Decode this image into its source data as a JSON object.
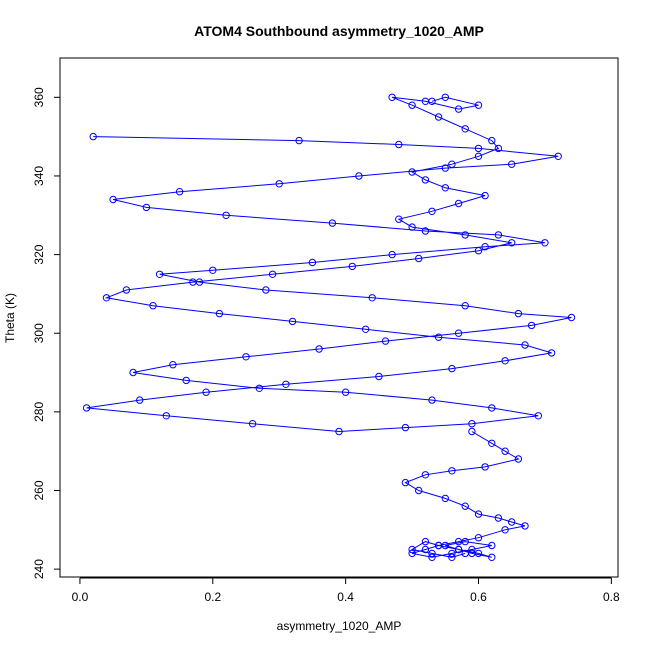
{
  "chart_data": {
    "type": "scatter",
    "title": "ATOM4 Southbound asymmetry_1020_AMP",
    "xlabel": "asymmetry_1020_AMP",
    "ylabel": "Theta (K)",
    "xlim": [
      -0.03,
      0.81
    ],
    "ylim": [
      238,
      370
    ],
    "xticks": [
      0.0,
      0.2,
      0.4,
      0.6,
      0.8
    ],
    "yticks": [
      240,
      260,
      280,
      300,
      320,
      340,
      360
    ],
    "xtick_labels": [
      "0.0",
      "0.2",
      "0.4",
      "0.6",
      "0.8"
    ],
    "ytick_labels": [
      "240",
      "260",
      "280",
      "300",
      "320",
      "340",
      "360"
    ],
    "grid": false,
    "series": [
      {
        "color": "#0000ff",
        "marker": "open-circle",
        "connected": true,
        "x": [
          0.02,
          0.33,
          0.48,
          0.6,
          0.72,
          0.65,
          0.55,
          0.42,
          0.3,
          0.15,
          0.05,
          0.1,
          0.22,
          0.38,
          0.52,
          0.63,
          0.7,
          0.61,
          0.47,
          0.35,
          0.2,
          0.12,
          0.18,
          0.28,
          0.44,
          0.58,
          0.66,
          0.74,
          0.68,
          0.57,
          0.46,
          0.36,
          0.25,
          0.14,
          0.08,
          0.16,
          0.27,
          0.4,
          0.53,
          0.62,
          0.69,
          0.59,
          0.49,
          0.39,
          0.26,
          0.13,
          0.01,
          0.09,
          0.19,
          0.31,
          0.45,
          0.56,
          0.64,
          0.71,
          0.67,
          0.54,
          0.43,
          0.32,
          0.21,
          0.11,
          0.04,
          0.07,
          0.17,
          0.29,
          0.41,
          0.51,
          0.6,
          0.65,
          0.58,
          0.5,
          0.48,
          0.53,
          0.57,
          0.61,
          0.55,
          0.52,
          0.5,
          0.56,
          0.6,
          0.63,
          0.62,
          0.58,
          0.54,
          0.5,
          0.47,
          0.52,
          0.57,
          0.6,
          0.55,
          0.53
        ],
        "y": [
          350,
          349,
          348,
          347,
          345,
          343,
          342,
          340,
          338,
          336,
          334,
          332,
          330,
          328,
          326,
          325,
          323,
          322,
          320,
          318,
          316,
          315,
          313,
          311,
          309,
          307,
          305,
          304,
          302,
          300,
          298,
          296,
          294,
          292,
          290,
          288,
          286,
          285,
          283,
          281,
          279,
          277,
          276,
          275,
          277,
          279,
          281,
          283,
          285,
          287,
          289,
          291,
          293,
          295,
          297,
          299,
          301,
          303,
          305,
          307,
          309,
          311,
          313,
          315,
          317,
          319,
          321,
          323,
          325,
          327,
          329,
          331,
          333,
          335,
          337,
          339,
          341,
          343,
          345,
          347,
          349,
          352,
          355,
          358,
          360,
          359,
          357,
          358,
          360,
          359
        ]
      },
      {
        "color": "#0000ff",
        "marker": "open-circle",
        "connected": true,
        "x": [
          0.59,
          0.62,
          0.64,
          0.66,
          0.61,
          0.56,
          0.52,
          0.49,
          0.51,
          0.55,
          0.58,
          0.6,
          0.63,
          0.65,
          0.67,
          0.64,
          0.6,
          0.57,
          0.54,
          0.52,
          0.5,
          0.53,
          0.56,
          0.59,
          0.62,
          0.58,
          0.55,
          0.57,
          0.6,
          0.62,
          0.59,
          0.57,
          0.54,
          0.52,
          0.5,
          0.53,
          0.56,
          0.58
        ],
        "y": [
          275,
          272,
          270,
          268,
          266,
          265,
          264,
          262,
          260,
          258,
          256,
          254,
          253,
          252,
          251,
          250,
          248,
          247,
          246,
          245,
          244,
          243,
          244,
          245,
          246,
          247,
          246,
          245,
          244,
          243,
          244,
          245,
          246,
          247,
          245,
          244,
          243,
          244
        ]
      }
    ]
  }
}
